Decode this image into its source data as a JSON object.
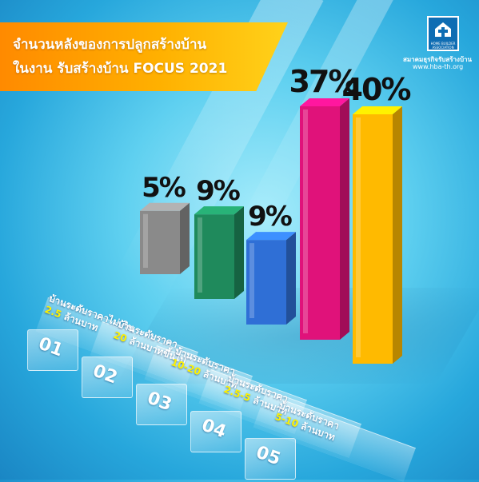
{
  "header": {
    "title_line1": "จำนวนหลังของการปลูกสร้างบ้าน",
    "title_line2": "ในงาน รับสร้างบ้าน FOCUS 2021"
  },
  "logo": {
    "org_name": "สมาคมธุรกิจรับสร้างบ้าน",
    "url": "www.hba-th.org",
    "emblem_text": "HOME BUILDER ASSOCIATION"
  },
  "colors": {
    "bar1": "#8a8a8a",
    "bar2": "#1f8a5c",
    "bar3": "#2f6fd6",
    "bar4": "#e0127a",
    "bar5": "#ffba00",
    "title_banner": "#ffb000",
    "highlight_text": "#fff200"
  },
  "categories": [
    {
      "num": "01",
      "line1": "บ้านระดับราคาไม่เกิน",
      "hl": "2.5",
      "rest": " ล้านบาท"
    },
    {
      "num": "02",
      "line1": "บ้านระดับราคา",
      "hl": "20",
      "rest": " ล้านบาทขึ้นไป"
    },
    {
      "num": "03",
      "line1": "บ้านระดับราคา",
      "hl": "10-20",
      "rest": " ล้านบาท"
    },
    {
      "num": "04",
      "line1": "บ้านระดับราคา",
      "hl": "2.5-5",
      "rest": " ล้านบาท"
    },
    {
      "num": "05",
      "line1": "บ้านระดับราคา",
      "hl": "5-10",
      "rest": " ล้านบาท"
    }
  ],
  "chart_data": {
    "type": "bar",
    "title": "จำนวนหลังของการปลูกสร้างบ้าน ในงาน รับสร้างบ้าน FOCUS 2021",
    "categories": [
      "บ้านระดับราคาไม่เกิน 2.5 ล้านบาท",
      "บ้านระดับราคา 20 ล้านบาทขึ้นไป",
      "บ้านระดับราคา 10-20 ล้านบาท",
      "บ้านระดับราคา 2.5-5 ล้านบาท",
      "บ้านระดับราคา 5-10 ล้านบาท"
    ],
    "values": [
      5,
      9,
      9,
      37,
      40
    ],
    "data_labels": [
      "5%",
      "9%",
      "9%",
      "37%",
      "40%"
    ],
    "unit": "%",
    "ylim": [
      0,
      40
    ],
    "grid": false,
    "legend": "none"
  }
}
